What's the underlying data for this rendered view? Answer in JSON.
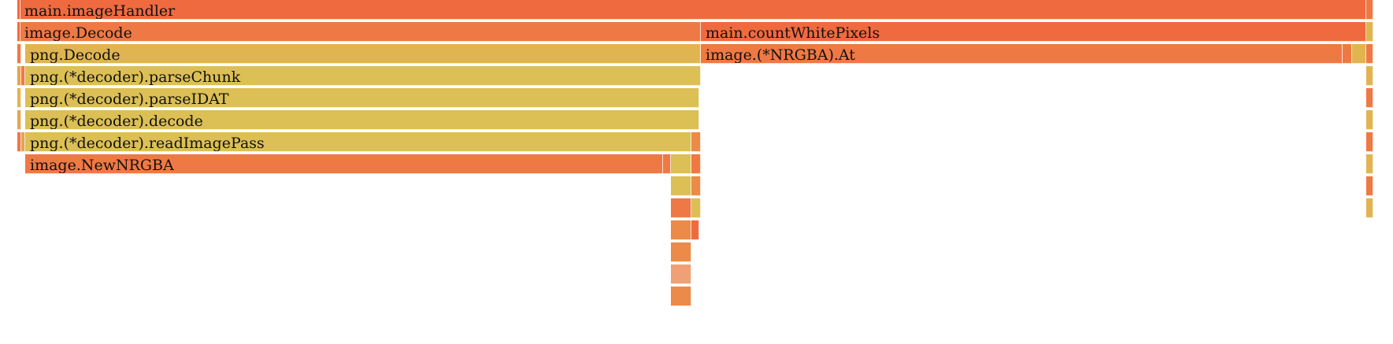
{
  "flamegraph": {
    "palette": {
      "red": "#f06a40",
      "orange": "#ef7944",
      "dark_orange": "#ec8a49",
      "amber": "#e4a54f",
      "gold": "#e0b551",
      "yellow": "#dcbf55",
      "light_orange": "#f0a075"
    },
    "frames": [
      {
        "name": "main.imageHandler",
        "label": "main.imageHandler",
        "color": "red"
      },
      {
        "name": "image.Decode",
        "label": "image.Decode",
        "color": "orange"
      },
      {
        "name": "main.countWhitePixels",
        "label": "main.countWhitePixels",
        "color": "red"
      },
      {
        "name": "png.Decode",
        "label": "png.Decode",
        "color": "gold"
      },
      {
        "name": "image.(*NRGBA).At",
        "label": "image.(*NRGBA).At",
        "color": "orange"
      },
      {
        "name": "png.(*decoder).parseChunk",
        "label": "png.(*decoder).parseChunk",
        "color": "yellow"
      },
      {
        "name": "png.(*decoder).parseIDAT",
        "label": "png.(*decoder).parseIDAT",
        "color": "yellow"
      },
      {
        "name": "png.(*decoder).decode",
        "label": "png.(*decoder).decode",
        "color": "yellow"
      },
      {
        "name": "png.(*decoder).readImagePass",
        "label": "png.(*decoder).readImagePass",
        "color": "yellow"
      },
      {
        "name": "image.NewNRGBA",
        "label": "image.NewNRGBA",
        "color": "orange"
      },
      {
        "name": "",
        "label": "",
        "color": "orange"
      },
      {
        "name": "",
        "label": "",
        "color": "red"
      },
      {
        "name": "",
        "label": "",
        "color": "red"
      },
      {
        "name": "",
        "label": "",
        "color": "amber"
      },
      {
        "name": "",
        "label": "",
        "color": "orange"
      },
      {
        "name": "",
        "label": "",
        "color": "gold"
      },
      {
        "name": "",
        "label": "",
        "color": "amber"
      },
      {
        "name": "",
        "label": "",
        "color": "orange"
      },
      {
        "name": "",
        "label": "",
        "color": "amber"
      },
      {
        "name": "",
        "label": "",
        "color": "orange"
      },
      {
        "name": "",
        "label": "",
        "color": "yellow"
      },
      {
        "name": "",
        "label": "",
        "color": "dark_orange"
      },
      {
        "name": "",
        "label": "",
        "color": "orange"
      },
      {
        "name": "",
        "label": "",
        "color": "yellow"
      },
      {
        "name": "",
        "label": "",
        "color": "dark_orange"
      },
      {
        "name": "",
        "label": "",
        "color": "orange"
      },
      {
        "name": "",
        "label": "",
        "color": "yellow"
      },
      {
        "name": "",
        "label": "",
        "color": "dark_orange"
      },
      {
        "name": "",
        "label": "",
        "color": "red"
      },
      {
        "name": "",
        "label": "",
        "color": "dark_orange"
      },
      {
        "name": "",
        "label": "",
        "color": "light_orange"
      },
      {
        "name": "",
        "label": "",
        "color": "dark_orange"
      },
      {
        "name": "",
        "label": "",
        "color": "orange"
      },
      {
        "name": "",
        "label": "",
        "color": "gold"
      },
      {
        "name": "",
        "label": "",
        "color": "orange"
      },
      {
        "name": "",
        "label": "",
        "color": "gold"
      },
      {
        "name": "",
        "label": "",
        "color": "orange"
      },
      {
        "name": "",
        "label": "",
        "color": "gold"
      },
      {
        "name": "",
        "label": "",
        "color": "orange"
      },
      {
        "name": "",
        "label": "",
        "color": "gold"
      },
      {
        "name": "",
        "label": "",
        "color": "orange"
      },
      {
        "name": "",
        "label": "",
        "color": "gold"
      },
      {
        "name": "",
        "label": "",
        "color": "orange"
      },
      {
        "name": "",
        "label": "",
        "color": "gold"
      }
    ]
  }
}
